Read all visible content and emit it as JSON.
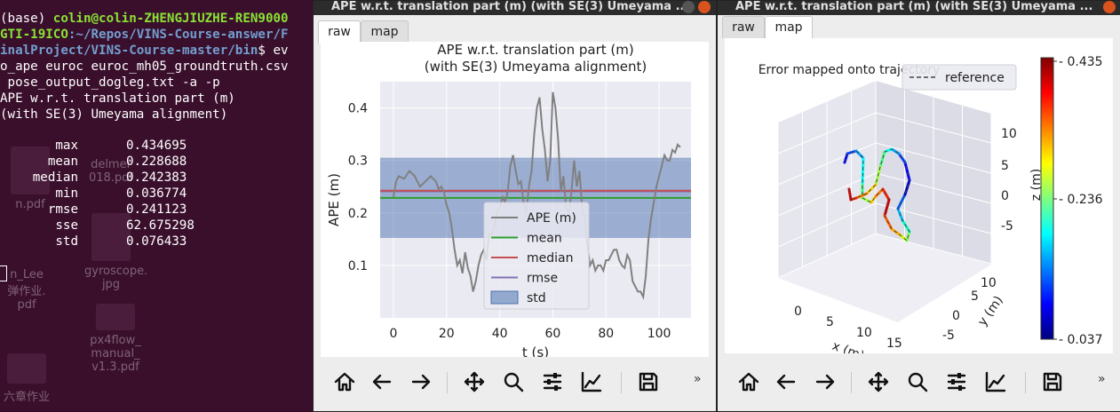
{
  "terminal": {
    "prompt_env": "(base) ",
    "prompt_user": "colin@colin-ZHENGJIUZHE-REN9000",
    "prompt_host_cont": "GTI-19ICO",
    "path_1": ":~/Repos/VINS-Course-answer/F",
    "path_2": "inalProject/VINS-Course-master/bin",
    "prompt_tail": "$ ev",
    "cmd_1": "o_ape euroc euroc_mh05_groundtruth.csv",
    "cmd_2": " pose_output_dogleg.txt -a -p",
    "out_1": "APE w.r.t. translation part (m)",
    "out_2": "(with SE(3) Umeyama alignment)",
    "stats": [
      {
        "key": "max",
        "value": "0.434695"
      },
      {
        "key": "mean",
        "value": "0.228688"
      },
      {
        "key": "median",
        "value": "0.242383"
      },
      {
        "key": "min",
        "value": "0.036774"
      },
      {
        "key": "rmse",
        "value": "0.241123"
      },
      {
        "key": "sse",
        "value": "62.675298"
      },
      {
        "key": "std",
        "value": "0.076433"
      }
    ],
    "desktop_icons": [
      "delmer",
      "018.pdf",
      "n.pdf",
      "gyroscope.",
      "jpg",
      "n_Lee",
      "弹作业.",
      "pdf",
      "px4flow_",
      "manual_",
      "v1.3.pdf",
      "六章作业"
    ]
  },
  "window_raw": {
    "title": "APE w.r.t. translation part (m) (with SE(3) Umeyama ...",
    "tabs": [
      "raw",
      "map"
    ],
    "active_tab": "raw",
    "more": "»"
  },
  "window_map": {
    "title": "APE w.r.t. translation part (m) (with SE(3) Umeyama ...",
    "tabs": [
      "raw",
      "map"
    ],
    "active_tab": "map",
    "more": "»"
  },
  "toolbar_icons": [
    "home-icon",
    "back-arrow-icon",
    "forward-arrow-icon",
    "pan-icon",
    "zoom-icon",
    "configure-subplots-icon",
    "edit-axis-icon",
    "save-icon"
  ],
  "chart_data": [
    {
      "type": "line",
      "title": "APE w.r.t. translation part (m)",
      "subtitle": "(with SE(3) Umeyama alignment)",
      "xlabel": "t (s)",
      "ylabel": "APE (m)",
      "xlim": [
        -5,
        112
      ],
      "ylim": [
        0.0,
        0.45
      ],
      "xticks": [
        0,
        20,
        40,
        60,
        80,
        100
      ],
      "yticks": [
        0.1,
        0.2,
        0.3,
        0.4
      ],
      "grid": true,
      "legend_position": "bottom-center",
      "legend": [
        "APE (m)",
        "mean",
        "median",
        "rmse",
        "std"
      ],
      "colors": {
        "ape": "#808080",
        "mean": "#2ca02c",
        "median": "#c44e52",
        "rmse": "#8172b2",
        "std": "#4c72b0"
      },
      "stats": {
        "mean": 0.228688,
        "median": 0.242383,
        "rmse": 0.241123,
        "std": 0.076433
      },
      "series": [
        {
          "name": "APE (m)",
          "x": [
            0,
            1,
            2,
            4,
            6,
            8,
            10,
            12,
            14,
            16,
            17,
            18,
            19,
            20,
            21,
            22,
            23,
            24,
            25,
            26,
            27,
            28,
            29,
            30,
            31,
            32,
            33,
            34,
            35,
            36,
            37,
            38,
            39,
            40,
            41,
            42,
            43,
            44,
            45,
            46,
            47,
            48,
            49,
            50,
            51,
            52,
            53,
            54,
            55,
            56,
            57,
            58,
            59,
            60,
            61,
            62,
            63,
            64,
            65,
            66,
            67,
            68,
            69,
            70,
            71,
            72,
            73,
            74,
            75,
            76,
            77,
            78,
            79,
            80,
            81,
            82,
            83,
            84,
            85,
            86,
            87,
            88,
            89,
            90,
            91,
            92,
            93,
            94,
            95,
            96,
            97,
            98,
            99,
            100,
            101,
            102,
            103,
            104,
            105,
            106,
            107,
            108
          ],
          "y": [
            0.23,
            0.26,
            0.27,
            0.265,
            0.28,
            0.27,
            0.25,
            0.26,
            0.27,
            0.26,
            0.245,
            0.25,
            0.24,
            0.215,
            0.2,
            0.17,
            0.13,
            0.1,
            0.11,
            0.085,
            0.125,
            0.095,
            0.08,
            0.05,
            0.07,
            0.1,
            0.12,
            0.13,
            0.11,
            0.16,
            0.16,
            0.175,
            0.2,
            0.21,
            0.23,
            0.22,
            0.24,
            0.29,
            0.31,
            0.28,
            0.255,
            0.26,
            0.22,
            0.2,
            0.25,
            0.28,
            0.35,
            0.4,
            0.42,
            0.36,
            0.32,
            0.26,
            0.3,
            0.43,
            0.4,
            0.34,
            0.24,
            0.27,
            0.21,
            0.2,
            0.24,
            0.3,
            0.25,
            0.28,
            0.21,
            0.19,
            0.14,
            0.1,
            0.11,
            0.09,
            0.1,
            0.1,
            0.09,
            0.11,
            0.11,
            0.12,
            0.13,
            0.13,
            0.11,
            0.1,
            0.095,
            0.12,
            0.11,
            0.07,
            0.06,
            0.05,
            0.05,
            0.04,
            0.08,
            0.15,
            0.19,
            0.22,
            0.25,
            0.27,
            0.29,
            0.31,
            0.3,
            0.3,
            0.32,
            0.315,
            0.33,
            0.325
          ]
        }
      ]
    },
    {
      "type": "scatter",
      "title": "Error mapped onto trajectory",
      "legend": [
        "reference"
      ],
      "xlabel": "x (m)",
      "ylabel": "y (m)",
      "zlabel": "z (m)",
      "xticks": [
        0,
        5,
        10,
        15
      ],
      "yticks": [
        -5,
        0,
        5,
        10
      ],
      "zticks": [
        -5,
        0,
        5,
        10
      ],
      "colorbar_ticks": [
        "0.435",
        "0.236",
        "0.037"
      ],
      "colorbar_range": [
        0.037,
        0.435
      ],
      "colormap": "jet"
    }
  ]
}
